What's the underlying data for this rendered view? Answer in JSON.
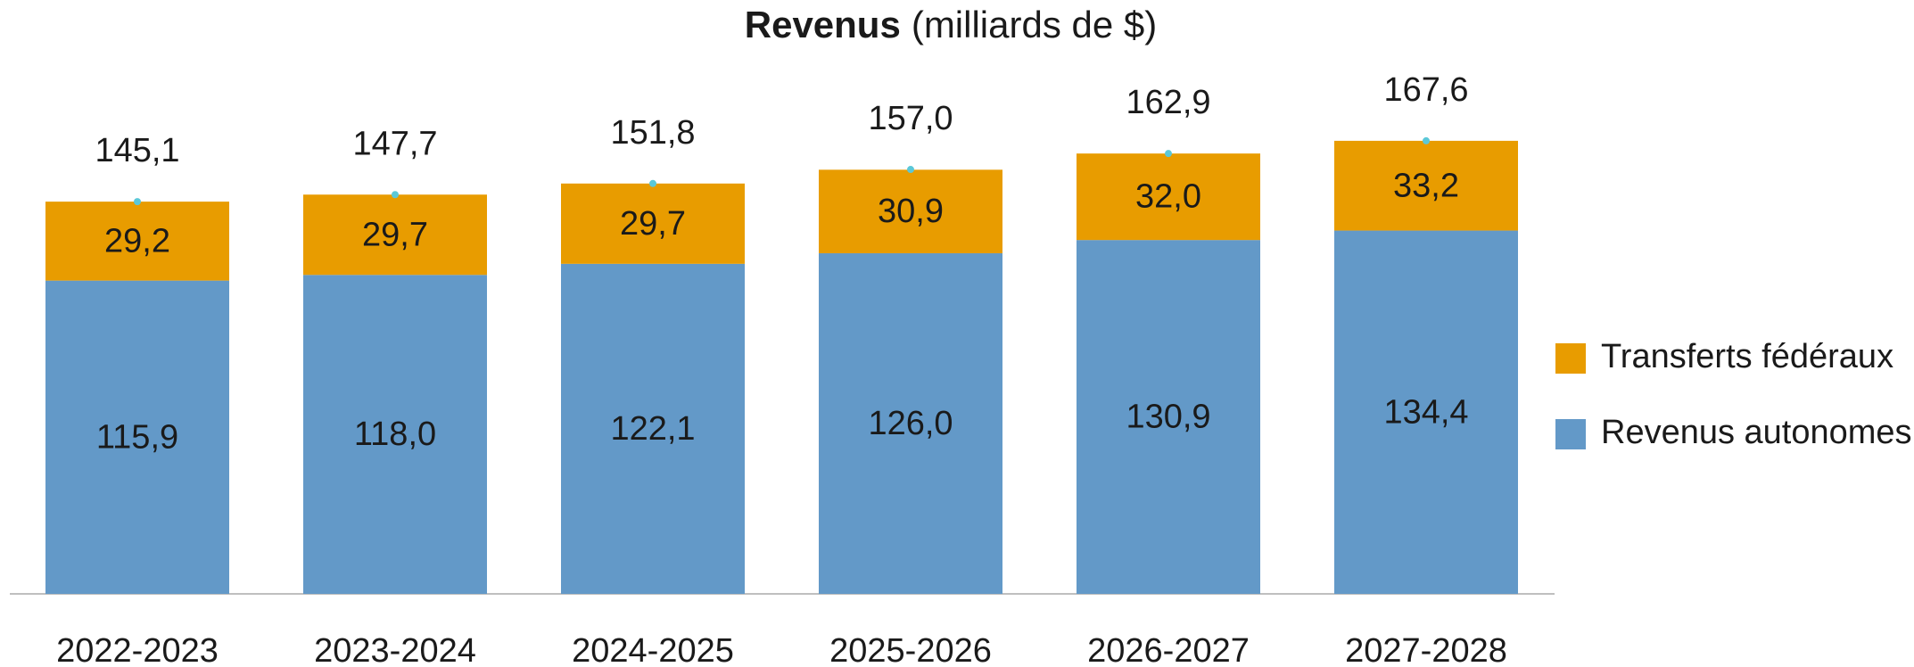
{
  "chart_data": {
    "type": "stacked_bar",
    "title": "Revenus",
    "title_unit": "(milliards de $)",
    "categories": [
      "2022-2023",
      "2023-2024",
      "2024-2025",
      "2025-2026",
      "2026-2027",
      "2027-2028"
    ],
    "series": [
      {
        "name": "Revenus autonomes",
        "color": "#6399c8",
        "values": [
          115.9,
          118.0,
          122.1,
          126.0,
          130.9,
          134.4
        ],
        "value_labels": [
          "115,9",
          "118,0",
          "122,1",
          "126,0",
          "130,9",
          "134,4"
        ]
      },
      {
        "name": "Transferts fédéraux",
        "color": "#e89c00",
        "values": [
          29.2,
          29.7,
          29.7,
          30.9,
          32.0,
          33.2
        ],
        "value_labels": [
          "29,2",
          "29,7",
          "29,7",
          "30,9",
          "32,0",
          "33,2"
        ]
      }
    ],
    "totals": [
      145.1,
      147.7,
      151.8,
      157.0,
      162.9,
      167.6
    ],
    "total_labels": [
      "145,1",
      "147,7",
      "151,8",
      "157,0",
      "162,9",
      "167,6"
    ],
    "total_color": "#5bc8d8",
    "ylim": [
      0,
      190
    ],
    "legend": "right"
  }
}
